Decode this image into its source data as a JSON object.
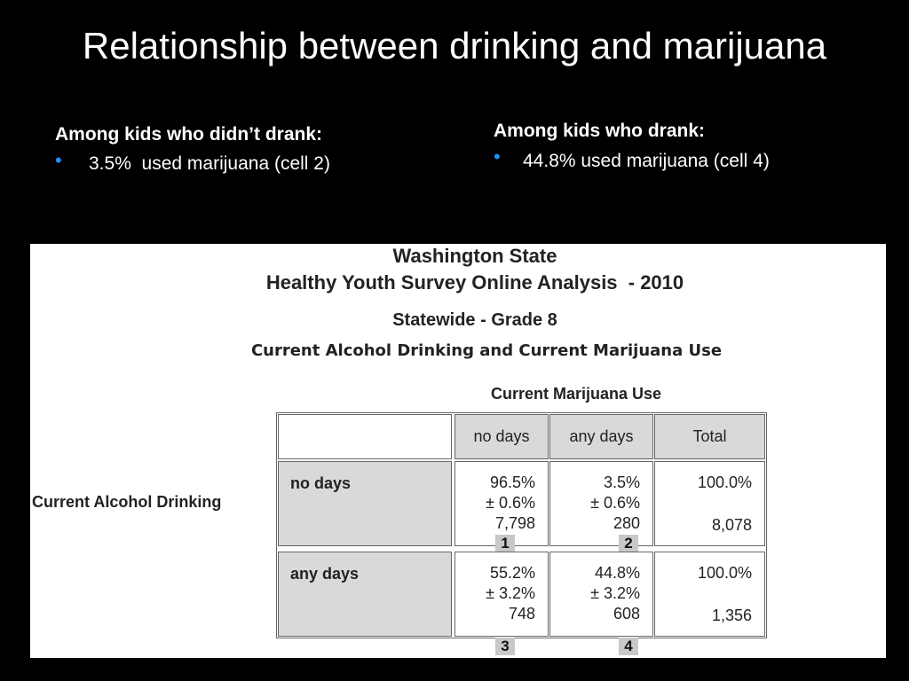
{
  "title": "Relationship between drinking and marijuana",
  "left": {
    "heading": "Among kids who didn’t drank:",
    "bullet": "3.5%  used marijuana (cell 2)"
  },
  "right": {
    "heading": "Among kids who drank:",
    "bullet": "44.8% used marijuana (cell 4)"
  },
  "figure": {
    "titles": [
      "Washington State",
      "Healthy Youth Survey Online Analysis  - 2010",
      "Statewide - Grade 8"
    ],
    "subtitle": "Current Alcohol Drinking and Current Marijuana Use",
    "column_group": "Current Marijuana Use",
    "row_group": "Current Alcohol Drinking",
    "columns": [
      "no days",
      "any days",
      "Total"
    ],
    "rows": [
      {
        "label": "no days",
        "cells": [
          [
            "96.5%",
            "± 0.6%",
            "7,798"
          ],
          [
            "3.5%",
            "± 0.6%",
            "280"
          ],
          [
            "100.0%",
            "8,078"
          ]
        ],
        "cell_numbers": [
          "1",
          "2"
        ]
      },
      {
        "label": "any days",
        "cells": [
          [
            "55.2%",
            "± 3.2%",
            "748"
          ],
          [
            "44.8%",
            "± 3.2%",
            "608"
          ],
          [
            "100.0%",
            "1,356"
          ]
        ],
        "cell_numbers": [
          "3",
          "4"
        ]
      }
    ]
  }
}
